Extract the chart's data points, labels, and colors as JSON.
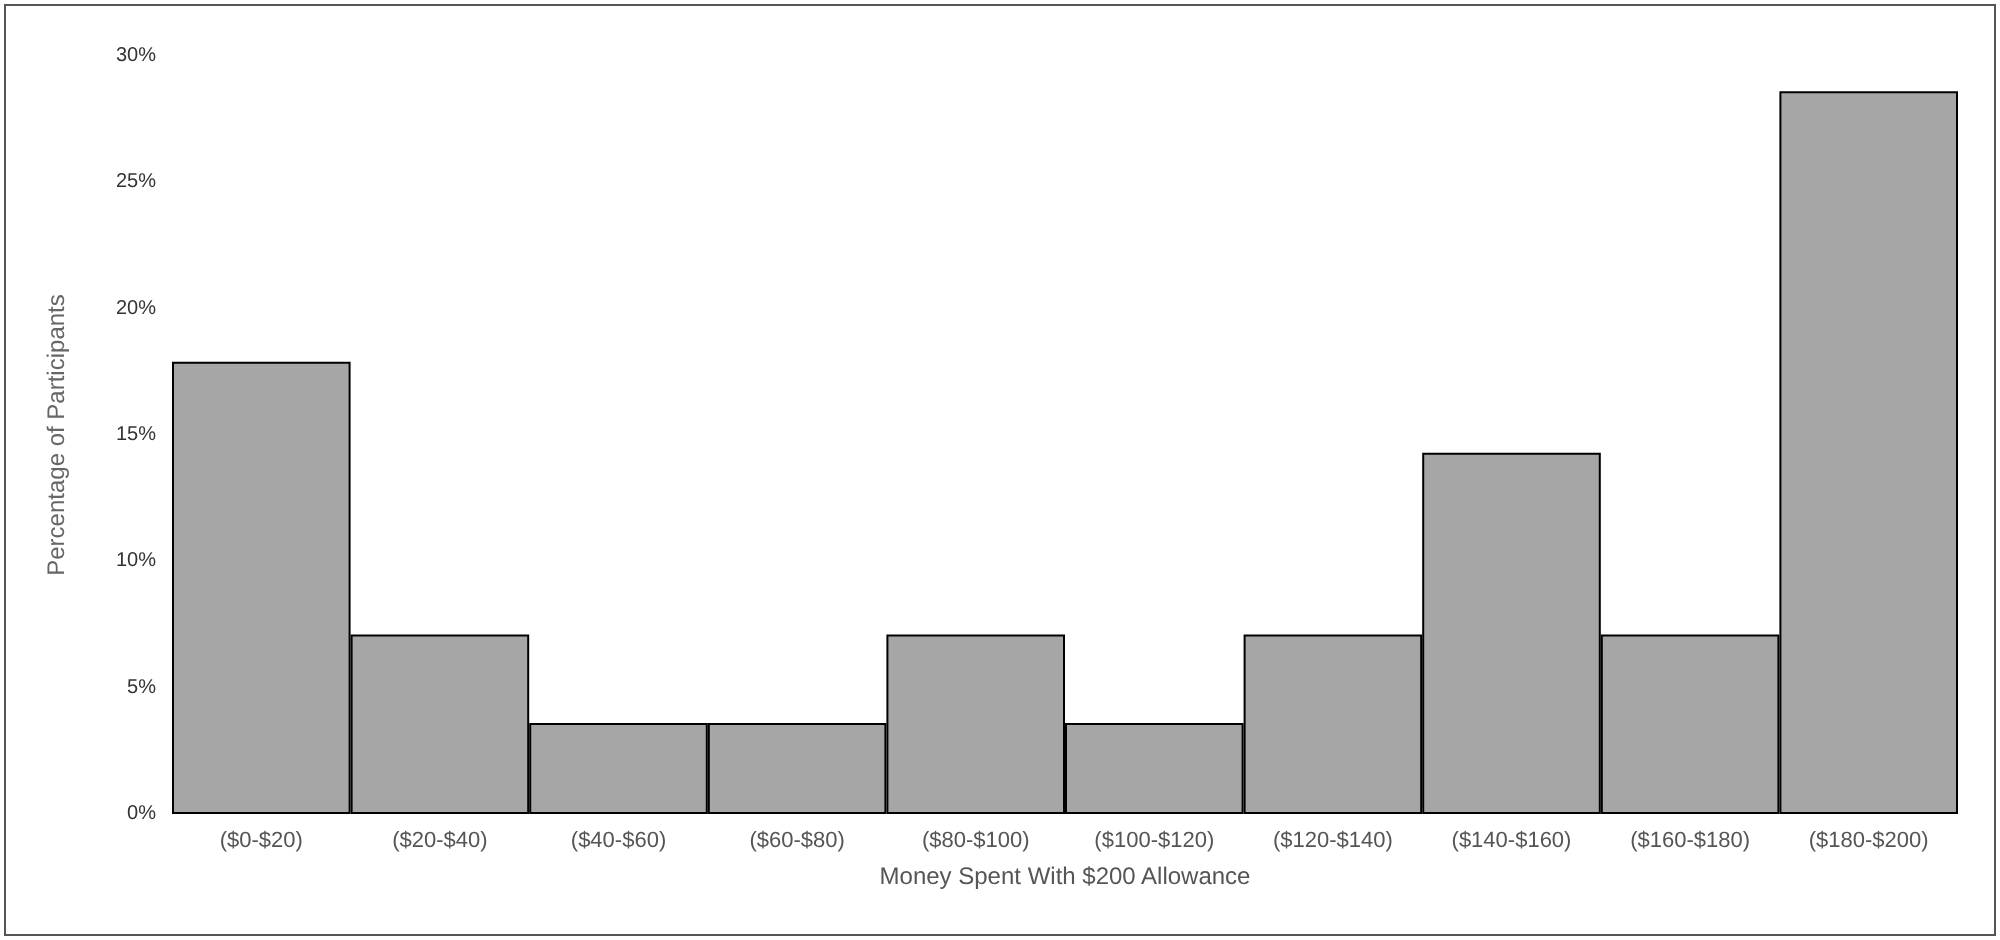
{
  "chart_data": {
    "type": "bar",
    "xlabel": "Money Spent With $200 Allowance",
    "ylabel": "Percentage of Participants",
    "categories": [
      "($0-$20)",
      "($20-$40)",
      "($40-$60)",
      "($60-$80)",
      "($80-$100)",
      "($100-$120)",
      "($120-$140)",
      "($140-$160)",
      "($160-$180)",
      "($180-$200)"
    ],
    "values": [
      17.9,
      7.1,
      3.6,
      3.6,
      7.1,
      3.6,
      7.1,
      14.3,
      7.1,
      28.6
    ],
    "color": "#a6a6a6",
    "ylim": [
      0,
      30
    ],
    "yticks": [
      {
        "value": 0,
        "label": "0%"
      },
      {
        "value": 5,
        "label": "5%"
      },
      {
        "value": 10,
        "label": "10%"
      },
      {
        "value": 15,
        "label": "15%"
      },
      {
        "value": 20,
        "label": "20%"
      },
      {
        "value": 25,
        "label": "25%"
      },
      {
        "value": 30,
        "label": "30%"
      }
    ],
    "grid": false
  }
}
